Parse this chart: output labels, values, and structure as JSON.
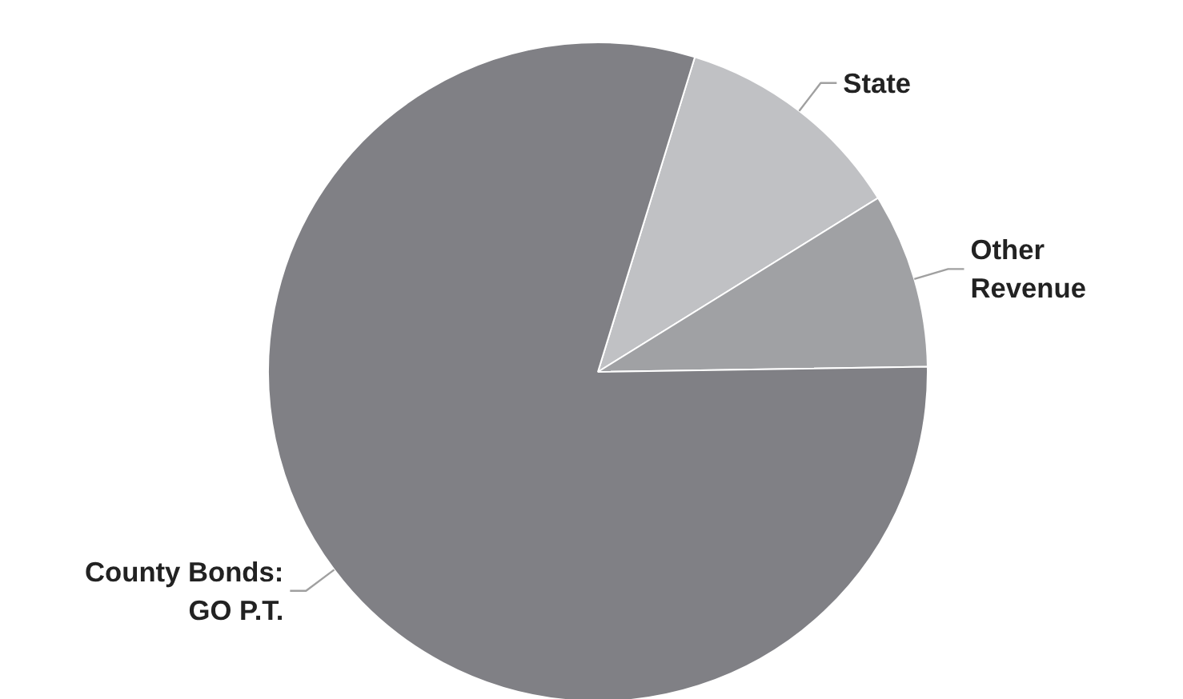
{
  "chart_data": {
    "type": "pie",
    "categories": [
      "State",
      "Other\nRevenue",
      "County Bonds:\nGO P.T."
    ],
    "values": [
      11.4,
      8.6,
      80.0
    ],
    "colors": [
      "#c0c1c4",
      "#a0a1a4",
      "#808085"
    ]
  }
}
